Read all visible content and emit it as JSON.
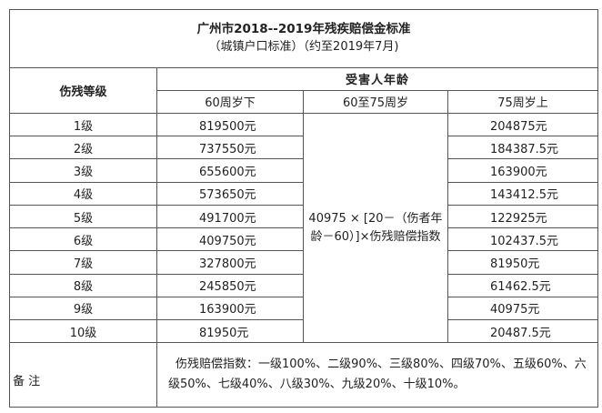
{
  "title": "广州市2018--2019年残疾赔偿金标准",
  "subtitle": "（城镇户口标准）（约至2019年7月)",
  "headers": {
    "grade": "伤残等级",
    "age": "受害人年龄",
    "under60": "60周岁下",
    "between": "60至75周岁",
    "over75": "75周岁上"
  },
  "rows": [
    {
      "grade": "1级",
      "under60": "819500元",
      "over75": "204875元"
    },
    {
      "grade": "2级",
      "under60": "737550元",
      "over75": "184387.5元"
    },
    {
      "grade": "3级",
      "under60": "655600元",
      "over75": "163900元"
    },
    {
      "grade": "4级",
      "under60": "573650元",
      "over75": "143412.5元"
    },
    {
      "grade": "5级",
      "under60": "491700元",
      "over75": "122925元"
    },
    {
      "grade": "6级",
      "under60": "409750元",
      "over75": "102437.5元"
    },
    {
      "grade": "7级",
      "under60": "327800元",
      "over75": "81950元"
    },
    {
      "grade": "8级",
      "under60": "245850元",
      "over75": "61462.5元"
    },
    {
      "grade": "9级",
      "under60": "163900元",
      "over75": "40975元"
    },
    {
      "grade": "10级",
      "under60": "81950元",
      "over75": "20487.5元"
    }
  ],
  "formula": "40975 × [20－（伤者年龄－60）]×伤残赔偿指数",
  "note": {
    "label": "备 注",
    "text": "伤残赔偿指数：一级100%、二级90%、三级80%、四级70%、五级60%、六级50%、七级40%、八级30%、九级20%、十级10%。"
  }
}
